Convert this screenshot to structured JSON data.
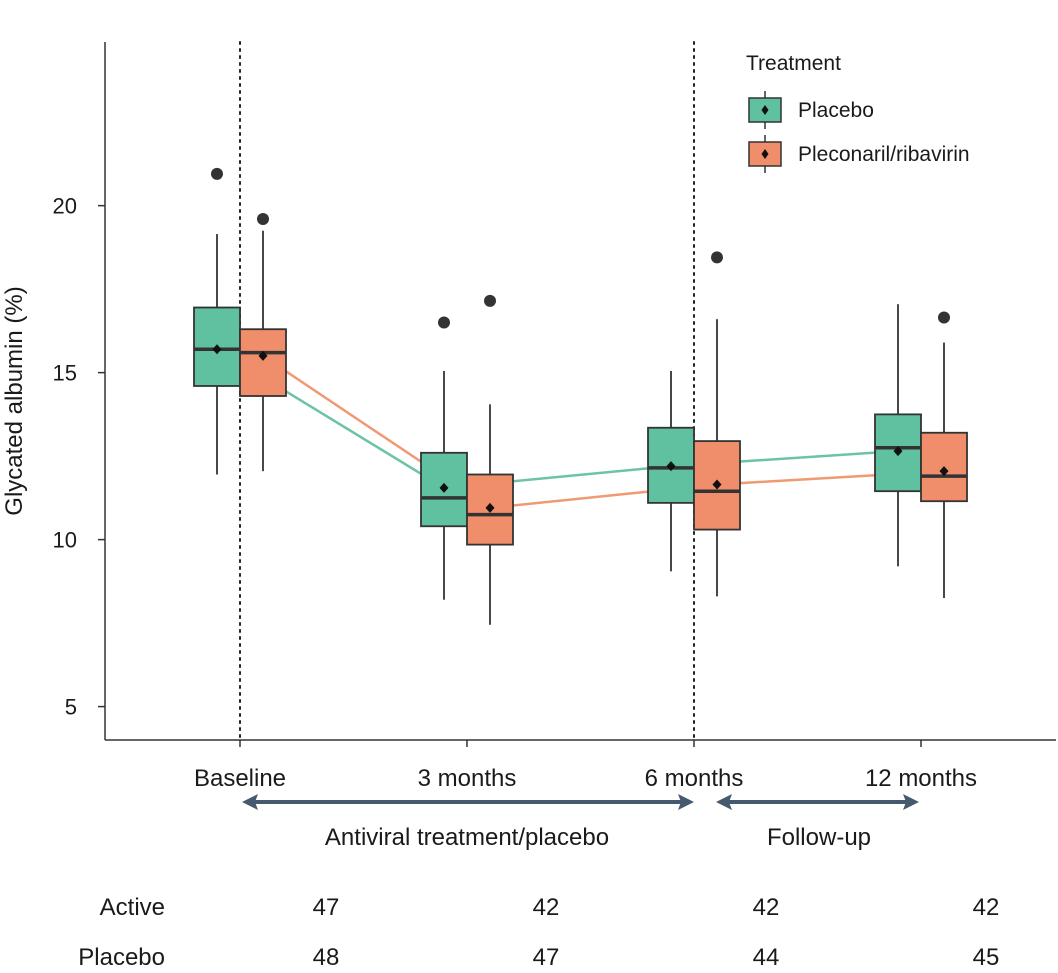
{
  "chart_data": {
    "type": "boxplot",
    "ylabel": "Glycated albumin (%)",
    "ylim": [
      4.0,
      24.9
    ],
    "yticks": [
      5,
      10,
      15,
      20
    ],
    "categories": [
      "Baseline",
      "3 months",
      "6 months",
      "12 months"
    ],
    "legend": {
      "title": "Treatment",
      "position": "top-right",
      "entries": [
        "Placebo",
        "Pleconaril/ribavirin"
      ]
    },
    "series": [
      {
        "name": "Placebo",
        "color": "#5fc1a0",
        "line_color": "#6cc4a4",
        "boxes": [
          {
            "q1": 14.6,
            "median": 15.7,
            "q3": 16.95,
            "whisker_low": 11.95,
            "whisker_high": 19.15,
            "mean": 15.7,
            "outliers": [
              20.95
            ]
          },
          {
            "q1": 10.4,
            "median": 11.25,
            "q3": 12.6,
            "whisker_low": 8.2,
            "whisker_high": 15.05,
            "mean": 11.55,
            "outliers": [
              16.5
            ]
          },
          {
            "q1": 11.1,
            "median": 12.15,
            "q3": 13.35,
            "whisker_low": 9.05,
            "whisker_high": 15.05,
            "mean": 12.2,
            "outliers": []
          },
          {
            "q1": 11.45,
            "median": 12.75,
            "q3": 13.75,
            "whisker_low": 9.2,
            "whisker_high": 17.05,
            "mean": 12.65,
            "outliers": []
          }
        ],
        "mean_line": [
          15.7,
          11.55,
          12.2,
          12.65
        ]
      },
      {
        "name": "Pleconaril/ribavirin",
        "color": "#f08d6a",
        "line_color": "#ef9a72",
        "boxes": [
          {
            "q1": 14.3,
            "median": 15.6,
            "q3": 16.3,
            "whisker_low": 12.05,
            "whisker_high": 19.25,
            "mean": 15.5,
            "outliers": [
              19.6
            ]
          },
          {
            "q1": 9.85,
            "median": 10.75,
            "q3": 11.95,
            "whisker_low": 7.45,
            "whisker_high": 14.05,
            "mean": 10.95,
            "outliers": [
              17.15
            ]
          },
          {
            "q1": 10.3,
            "median": 11.45,
            "q3": 12.95,
            "whisker_low": 8.3,
            "whisker_high": 16.6,
            "mean": 11.65,
            "outliers": [
              18.45
            ]
          },
          {
            "q1": 11.15,
            "median": 11.9,
            "q3": 13.2,
            "whisker_low": 8.25,
            "whisker_high": 15.9,
            "mean": 12.05,
            "outliers": [
              16.65
            ]
          }
        ],
        "mean_line": [
          15.5,
          10.95,
          11.65,
          12.05
        ]
      }
    ],
    "phase_dividers_at": [
      "Baseline",
      "6 months"
    ],
    "phase_annotations": [
      {
        "label": "Antiviral treatment/placebo",
        "from": "Baseline",
        "to": "6 months"
      },
      {
        "label": "Follow-up",
        "from": "6 months",
        "to": "12 months"
      }
    ],
    "sample_sizes": {
      "rows": [
        {
          "label": "Active",
          "values": [
            "47",
            "42",
            "42",
            "42"
          ]
        },
        {
          "label": "Placebo",
          "values": [
            "48",
            "47",
            "44",
            "45"
          ]
        }
      ]
    }
  }
}
